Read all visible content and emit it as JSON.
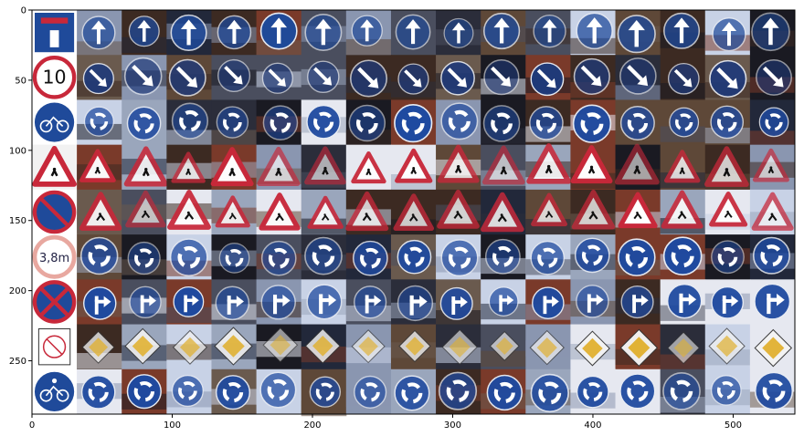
{
  "chart_data": {
    "type": "image-grid",
    "title": "",
    "xlabel": "",
    "ylabel": "",
    "xlim": [
      0,
      544
    ],
    "ylim": [
      288,
      0
    ],
    "grid": false,
    "xticks": [
      0,
      100,
      200,
      300,
      400,
      500
    ],
    "yticks": [
      0,
      50,
      100,
      150,
      200,
      250
    ],
    "rows": 9,
    "cols": 17,
    "cell_size": 32,
    "sign_rows": [
      {
        "shape": "circle",
        "fill": "#1f4a9a",
        "glyph": "arrow-up",
        "ref": "rect-dead-end"
      },
      {
        "shape": "circle",
        "fill": "#1f3a7a",
        "glyph": "arrow-down-right",
        "ref": "speed-limit-10"
      },
      {
        "shape": "circle",
        "fill": "#1f4aa0",
        "glyph": "roundabout",
        "ref": "bicycle"
      },
      {
        "shape": "triangle",
        "fill": "#ffffff",
        "glyph": "figure",
        "ref": "pedestrian-triangle"
      },
      {
        "shape": "triangle",
        "fill": "#ffffff",
        "glyph": "worker",
        "ref": "no-stopping"
      },
      {
        "shape": "circle",
        "fill": "#1f4aa0",
        "glyph": "roundabout",
        "ref": "height-limit"
      },
      {
        "shape": "circle",
        "fill": "#1f4aa0",
        "glyph": "arrow-up-right",
        "ref": "no-parking"
      },
      {
        "shape": "diamond",
        "fill": "#d8a020",
        "glyph": "none",
        "ref": "crossing-sign"
      },
      {
        "shape": "circle",
        "fill": "#1f4aa0",
        "glyph": "roundabout",
        "ref": "shared-path"
      }
    ],
    "ref_texts": {
      "speed-limit-10": "10",
      "height-limit": "3,8m"
    }
  },
  "colors": {
    "sign_blue": "#1f4a9a",
    "sign_red": "#c8283a",
    "priority_yellow": "#e0b030",
    "sign_white": "#ffffff"
  }
}
